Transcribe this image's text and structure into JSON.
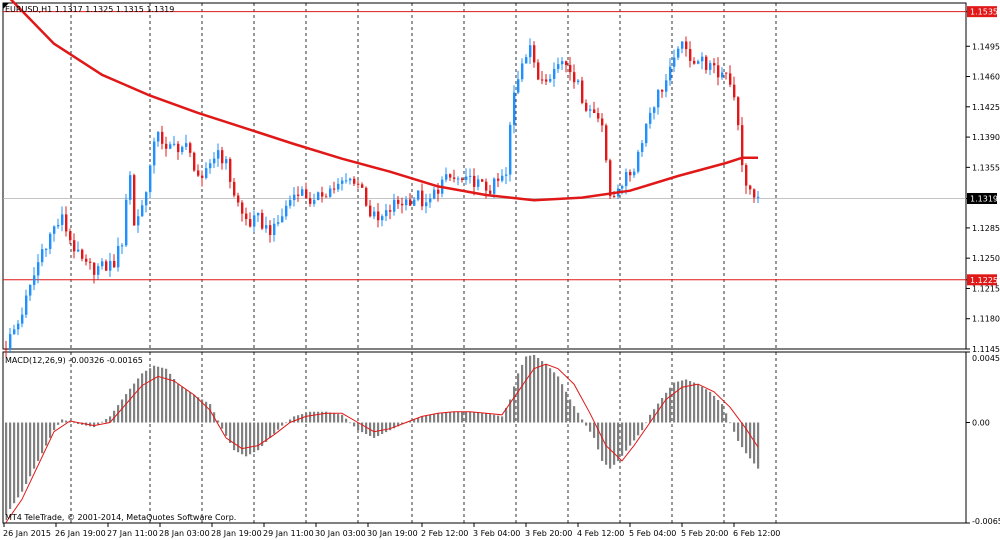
{
  "header": {
    "text": "EURUSD,H1  1.1317 1.1325 1.1315 1.1319"
  },
  "macd_label": "MACD(12,26,9) -0.00326 -0.00165",
  "copyright": "MT4 TeleTrade, © 2001-2014, MetaQuotes Software Corp.",
  "colors": {
    "bull": "#1E90FF",
    "bear": "#E01818",
    "ma": "#E01818",
    "signal": "#E01818",
    "hist": "#808080",
    "level": "#E01818",
    "grid": "#000000"
  },
  "chart_data": [
    {
      "type": "candlestick",
      "symbol": "EURUSD",
      "timeframe": "H1",
      "ylim": [
        1.1145,
        1.1545
      ],
      "y_ticks": [
        "1.1535",
        "1.1495",
        "1.1460",
        "1.1425",
        "1.1390",
        "1.1355",
        "1.1319",
        "1.1285",
        "1.1250",
        "1.1225",
        "1.1215",
        "1.1180",
        "1.1145"
      ],
      "x_ticks": [
        "26 Jan 2015",
        "26 Jan 19:00",
        "27 Jan 11:00",
        "28 Jan 03:00",
        "28 Jan 19:00",
        "29 Jan 11:00",
        "30 Jan 03:00",
        "30 Jan 19:00",
        "2 Feb 12:00",
        "3 Feb 04:00",
        "3 Feb 20:00",
        "4 Feb 12:00",
        "5 Feb 04:00",
        "5 Feb 20:00",
        "6 Feb 12:00"
      ],
      "current_price": "1.1319",
      "levels": [
        {
          "label": "1.1535",
          "value": 1.1535
        },
        {
          "label": "1.1225",
          "value": 1.1225
        }
      ],
      "path": [
        [
          0,
          1.115
        ],
        [
          3,
          1.1175
        ],
        [
          6,
          1.1215
        ],
        [
          9,
          1.126
        ],
        [
          12,
          1.1285
        ],
        [
          14,
          1.1295
        ],
        [
          16,
          1.1272
        ],
        [
          18,
          1.1252
        ],
        [
          20,
          1.124
        ],
        [
          22,
          1.1238
        ],
        [
          25,
          1.124
        ],
        [
          27,
          1.1245
        ],
        [
          29,
          1.127
        ],
        [
          30,
          1.132
        ],
        [
          31,
          1.1345
        ],
        [
          32,
          1.129
        ],
        [
          34,
          1.131
        ],
        [
          36,
          1.1355
        ],
        [
          38,
          1.14
        ],
        [
          40,
          1.1372
        ],
        [
          42,
          1.138
        ],
        [
          45,
          1.1378
        ],
        [
          47,
          1.1358
        ],
        [
          49,
          1.1335
        ],
        [
          51,
          1.136
        ],
        [
          53,
          1.1375
        ],
        [
          55,
          1.1358
        ],
        [
          57,
          1.1325
        ],
        [
          59,
          1.13
        ],
        [
          61,
          1.129
        ],
        [
          63,
          1.1295
        ],
        [
          65,
          1.1285
        ],
        [
          67,
          1.1282
        ],
        [
          69,
          1.13
        ],
        [
          71,
          1.1318
        ],
        [
          73,
          1.133
        ],
        [
          75,
          1.1322
        ],
        [
          77,
          1.1312
        ],
        [
          79,
          1.1325
        ],
        [
          81,
          1.133
        ],
        [
          83,
          1.1333
        ],
        [
          85,
          1.1338
        ],
        [
          87,
          1.1342
        ],
        [
          89,
          1.133
        ],
        [
          91,
          1.1302
        ],
        [
          93,
          1.1292
        ],
        [
          95,
          1.13
        ],
        [
          97,
          1.1312
        ],
        [
          99,
          1.1315
        ],
        [
          101,
          1.1318
        ],
        [
          103,
          1.1322
        ],
        [
          105,
          1.1308
        ],
        [
          107,
          1.1325
        ],
        [
          109,
          1.1338
        ],
        [
          111,
          1.1342
        ],
        [
          113,
          1.134
        ],
        [
          115,
          1.1337
        ],
        [
          117,
          1.134
        ],
        [
          119,
          1.1332
        ],
        [
          121,
          1.133
        ],
        [
          123,
          1.1338
        ],
        [
          125,
          1.1345
        ],
        [
          126,
          1.14
        ],
        [
          127,
          1.144
        ],
        [
          129,
          1.148
        ],
        [
          131,
          1.1498
        ],
        [
          132,
          1.147
        ],
        [
          133,
          1.1458
        ],
        [
          135,
          1.1462
        ],
        [
          137,
          1.1468
        ],
        [
          139,
          1.148
        ],
        [
          141,
          1.1472
        ],
        [
          143,
          1.1448
        ],
        [
          145,
          1.1425
        ],
        [
          147,
          1.1418
        ],
        [
          149,
          1.141
        ],
        [
          150,
          1.1365
        ],
        [
          151,
          1.1315
        ],
        [
          152,
          1.1322
        ],
        [
          153,
          1.1335
        ],
        [
          155,
          1.1342
        ],
        [
          157,
          1.1355
        ],
        [
          159,
          1.139
        ],
        [
          161,
          1.142
        ],
        [
          163,
          1.144
        ],
        [
          165,
          1.1455
        ],
        [
          167,
          1.1475
        ],
        [
          168,
          1.1498
        ],
        [
          170,
          1.1488
        ],
        [
          172,
          1.148
        ],
        [
          174,
          1.1478
        ],
        [
          176,
          1.147
        ],
        [
          178,
          1.1462
        ],
        [
          180,
          1.1468
        ],
        [
          182,
          1.144
        ],
        [
          183,
          1.14
        ],
        [
          184,
          1.1355
        ],
        [
          185,
          1.1338
        ],
        [
          186,
          1.1325
        ],
        [
          187,
          1.132
        ],
        [
          188,
          1.1319
        ]
      ],
      "moving_average": [
        [
          0,
          1.1555
        ],
        [
          12,
          1.1498
        ],
        [
          24,
          1.1462
        ],
        [
          36,
          1.1438
        ],
        [
          48,
          1.1418
        ],
        [
          60,
          1.14
        ],
        [
          72,
          1.1382
        ],
        [
          84,
          1.1365
        ],
        [
          96,
          1.135
        ],
        [
          108,
          1.1333
        ],
        [
          120,
          1.1323
        ],
        [
          132,
          1.1317
        ],
        [
          144,
          1.132
        ],
        [
          156,
          1.1328
        ],
        [
          168,
          1.1345
        ],
        [
          180,
          1.136
        ],
        [
          184,
          1.1366
        ],
        [
          188,
          1.1366
        ]
      ]
    },
    {
      "type": "histogram",
      "name": "MACD(12,26,9)",
      "ylim": [
        -0.00654,
        0.00459
      ],
      "y_ticks": [
        "0.00459",
        "0.00",
        "-0.00654"
      ],
      "x_ticks": [
        "26 Jan 2015",
        "26 Jan 19:00",
        "27 Jan 11:00",
        "28 Jan 03:00",
        "28 Jan 19:00",
        "29 Jan 11:00",
        "30 Jan 03:00",
        "30 Jan 19:00",
        "2 Feb 12:00",
        "3 Feb 04:00",
        "3 Feb 20:00",
        "4 Feb 12:00",
        "5 Feb 04:00",
        "5 Feb 20:00",
        "6 Feb 12:00"
      ],
      "histogram": [
        [
          0,
          -0.006
        ],
        [
          4,
          -0.0045
        ],
        [
          8,
          -0.0025
        ],
        [
          12,
          -0.0005
        ],
        [
          14,
          0.0002
        ],
        [
          18,
          -0.0001
        ],
        [
          22,
          -0.0003
        ],
        [
          26,
          0.0004
        ],
        [
          29,
          0.0015
        ],
        [
          31,
          0.0022
        ],
        [
          34,
          0.0032
        ],
        [
          37,
          0.0037
        ],
        [
          40,
          0.0035
        ],
        [
          43,
          0.0025
        ],
        [
          47,
          0.0018
        ],
        [
          51,
          0.0012
        ],
        [
          54,
          -0.0004
        ],
        [
          57,
          -0.0018
        ],
        [
          60,
          -0.0022
        ],
        [
          63,
          -0.0018
        ],
        [
          66,
          -0.001
        ],
        [
          69,
          -0.0002
        ],
        [
          72,
          0.0004
        ],
        [
          76,
          0.0007
        ],
        [
          80,
          0.0007
        ],
        [
          84,
          0.0005
        ],
        [
          88,
          -0.0005
        ],
        [
          92,
          -0.001
        ],
        [
          96,
          -0.0005
        ],
        [
          100,
          0.0
        ],
        [
          104,
          0.0004
        ],
        [
          108,
          0.0006
        ],
        [
          112,
          0.0007
        ],
        [
          116,
          0.0007
        ],
        [
          120,
          0.0006
        ],
        [
          124,
          0.0004
        ],
        [
          126,
          0.0015
        ],
        [
          128,
          0.0032
        ],
        [
          130,
          0.0043
        ],
        [
          132,
          0.0044
        ],
        [
          135,
          0.0038
        ],
        [
          138,
          0.003
        ],
        [
          141,
          0.0015
        ],
        [
          144,
          0.0002
        ],
        [
          147,
          -0.001
        ],
        [
          149,
          -0.0025
        ],
        [
          151,
          -0.003
        ],
        [
          153,
          -0.0025
        ],
        [
          156,
          -0.0015
        ],
        [
          159,
          -0.0005
        ],
        [
          161,
          0.0005
        ],
        [
          164,
          0.0016
        ],
        [
          167,
          0.0026
        ],
        [
          170,
          0.0028
        ],
        [
          173,
          0.0025
        ],
        [
          176,
          0.002
        ],
        [
          179,
          0.0012
        ],
        [
          181,
          0.0
        ],
        [
          183,
          -0.0012
        ],
        [
          185,
          -0.002
        ],
        [
          188,
          -0.003
        ]
      ],
      "signal": [
        [
          0,
          -0.0065
        ],
        [
          4,
          -0.005
        ],
        [
          8,
          -0.0028
        ],
        [
          12,
          -0.0006
        ],
        [
          16,
          0.0001
        ],
        [
          22,
          -0.0002
        ],
        [
          26,
          0.0
        ],
        [
          30,
          0.0012
        ],
        [
          34,
          0.0024
        ],
        [
          38,
          0.003
        ],
        [
          42,
          0.0027
        ],
        [
          47,
          0.0018
        ],
        [
          51,
          0.0008
        ],
        [
          55,
          -0.001
        ],
        [
          59,
          -0.0017
        ],
        [
          63,
          -0.0015
        ],
        [
          67,
          -0.0008
        ],
        [
          71,
          0.0
        ],
        [
          75,
          0.0004
        ],
        [
          80,
          0.0006
        ],
        [
          84,
          0.0006
        ],
        [
          88,
          0.0
        ],
        [
          92,
          -0.0006
        ],
        [
          96,
          -0.0004
        ],
        [
          100,
          0.0
        ],
        [
          104,
          0.0004
        ],
        [
          108,
          0.0006
        ],
        [
          112,
          0.0007
        ],
        [
          116,
          0.0007
        ],
        [
          120,
          0.0006
        ],
        [
          124,
          0.0005
        ],
        [
          128,
          0.002
        ],
        [
          132,
          0.0035
        ],
        [
          135,
          0.0038
        ],
        [
          138,
          0.0035
        ],
        [
          142,
          0.0025
        ],
        [
          146,
          0.0006
        ],
        [
          150,
          -0.0015
        ],
        [
          154,
          -0.0025
        ],
        [
          157,
          -0.0015
        ],
        [
          161,
          0.0
        ],
        [
          165,
          0.0015
        ],
        [
          169,
          0.0023
        ],
        [
          173,
          0.0025
        ],
        [
          177,
          0.002
        ],
        [
          181,
          0.001
        ],
        [
          185,
          -0.0004
        ],
        [
          188,
          -0.0016
        ]
      ]
    }
  ]
}
